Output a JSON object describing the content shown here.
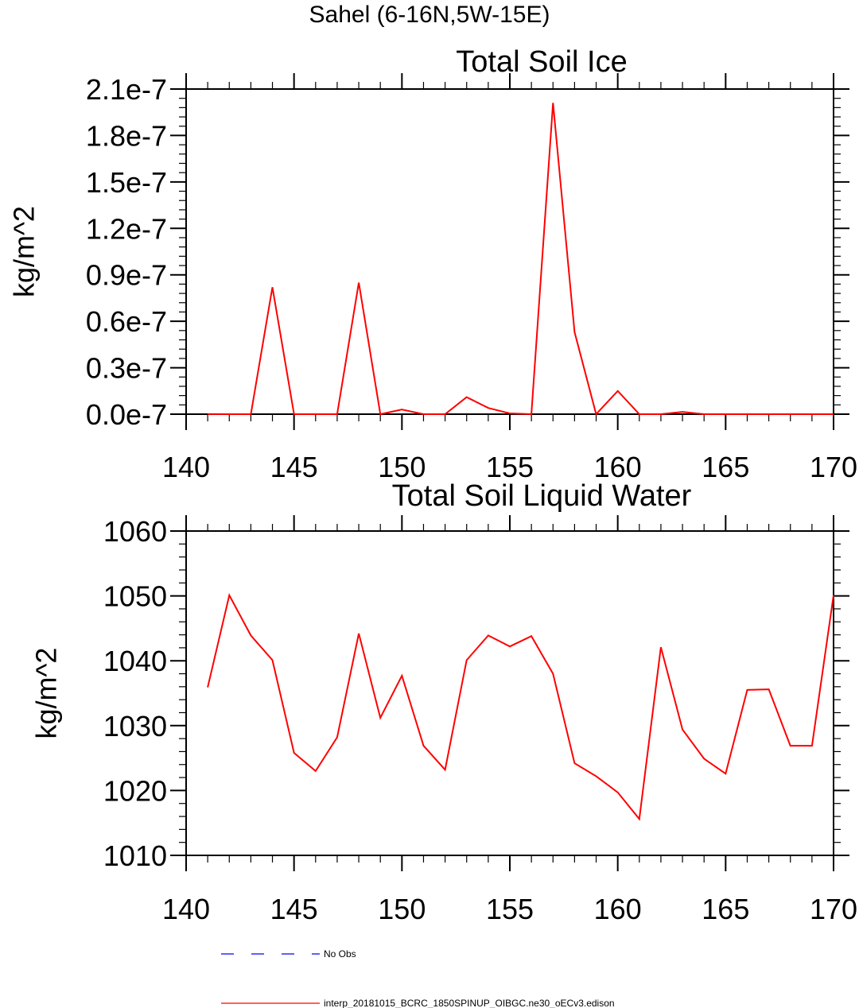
{
  "figure": {
    "title": "Sahel (6-16N,5W-15E)"
  },
  "legend": [
    {
      "label": "No Obs",
      "color": "#0000ff",
      "style": "dashed"
    },
    {
      "label": "interp_20181015_BCRC_1850SPINUP_OIBGC.ne30_oECv3.edison",
      "color": "#ff0000",
      "style": "solid"
    }
  ],
  "chart_data": [
    {
      "type": "line",
      "title": "Total Soil Ice",
      "xlabel": "",
      "ylabel": "kg/m^2",
      "xlim": [
        140,
        170
      ],
      "ylim": [
        0,
        2.1e-07
      ],
      "x_ticks": [
        140,
        145,
        150,
        155,
        160,
        165,
        170
      ],
      "x_tick_labels": [
        "140",
        "145",
        "150",
        "155",
        "160",
        "165",
        "170"
      ],
      "y_ticks": [
        0,
        3e-08,
        6e-08,
        9e-08,
        1.2e-07,
        1.5e-07,
        1.8e-07,
        2.1e-07
      ],
      "y_tick_labels": [
        "0.0e-7",
        "0.3e-7",
        "0.6e-7",
        "0.9e-7",
        "1.2e-7",
        "1.5e-7",
        "1.8e-7",
        "2.1e-7"
      ],
      "grid": false,
      "series": [
        {
          "color": "#ff0000",
          "x": [
            141,
            142,
            143,
            144,
            145,
            146,
            147,
            148,
            149,
            150,
            151,
            152,
            153,
            154,
            155,
            156,
            157,
            158,
            159,
            160,
            161,
            162,
            163,
            164,
            165,
            166,
            167,
            168,
            169,
            170
          ],
          "values": [
            5e-11,
            0,
            0,
            8.2e-08,
            0,
            0,
            0,
            8.5e-08,
            0,
            3e-09,
            0,
            0,
            1.1e-08,
            4e-09,
            5e-10,
            0,
            2.01e-07,
            5.3e-08,
            0,
            1.5e-08,
            0,
            0,
            1.5e-09,
            0,
            0,
            0,
            0,
            0,
            0,
            0
          ]
        }
      ]
    },
    {
      "type": "line",
      "title": "Total Soil Liquid Water",
      "xlabel": "",
      "ylabel": "kg/m^2",
      "xlim": [
        140,
        170
      ],
      "ylim": [
        1010,
        1060
      ],
      "x_ticks": [
        140,
        145,
        150,
        155,
        160,
        165,
        170
      ],
      "x_tick_labels": [
        "140",
        "145",
        "150",
        "155",
        "160",
        "165",
        "170"
      ],
      "y_ticks": [
        1010,
        1020,
        1030,
        1040,
        1050,
        1060
      ],
      "y_tick_labels": [
        "1010",
        "1020",
        "1030",
        "1040",
        "1050",
        "1060"
      ],
      "grid": false,
      "series": [
        {
          "color": "#ff0000",
          "x": [
            141,
            142,
            143,
            144,
            145,
            146,
            147,
            148,
            149,
            150,
            151,
            152,
            153,
            154,
            155,
            156,
            157,
            158,
            159,
            160,
            161,
            162,
            163,
            164,
            165,
            166,
            167,
            168,
            169,
            170
          ],
          "values": [
            1035.9,
            1050.1,
            1043.9,
            1040.1,
            1025.8,
            1023.0,
            1028.2,
            1044.2,
            1031.2,
            1037.7,
            1026.9,
            1023.2,
            1040.1,
            1043.9,
            1042.2,
            1043.8,
            1038.0,
            1024.2,
            1022.2,
            1019.7,
            1015.6,
            1042.1,
            1029.4,
            1024.9,
            1022.6,
            1035.5,
            1035.6,
            1026.9,
            1026.9,
            1050.1
          ]
        }
      ]
    }
  ]
}
